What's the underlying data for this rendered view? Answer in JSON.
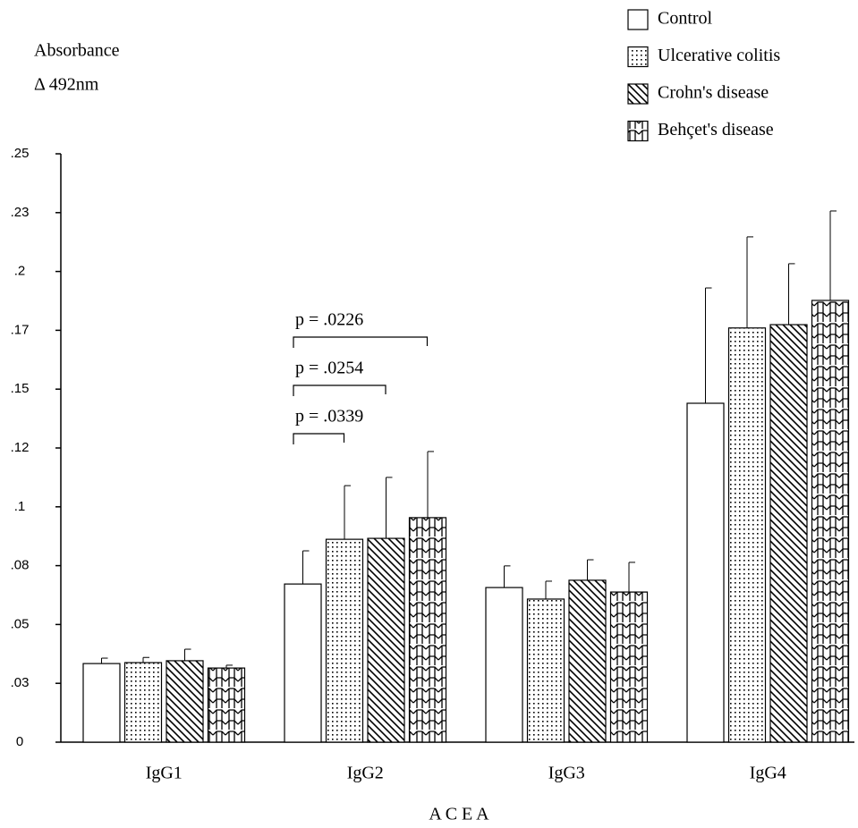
{
  "chart_data": {
    "type": "bar",
    "y_label_lines": [
      "Absorbance",
      "Δ 492nm"
    ],
    "x_label": "A C E A",
    "categories": [
      "IgG1",
      "IgG2",
      "IgG3",
      "IgG4"
    ],
    "series": [
      {
        "name": "Control",
        "color": "#ffffff",
        "pattern": "none",
        "values": [
          0.0334,
          0.0672,
          0.0657,
          0.144
        ],
        "errors": [
          0.0023,
          0.0141,
          0.0092,
          0.049
        ]
      },
      {
        "name": "Ulcerative colitis",
        "color": "#ffffff",
        "pattern": "dots",
        "values": [
          0.0338,
          0.0862,
          0.0608,
          0.176
        ],
        "errors": [
          0.0022,
          0.0228,
          0.0076,
          0.0387
        ]
      },
      {
        "name": "Crohn's disease",
        "color": "#ffffff",
        "pattern": "diagonal",
        "values": [
          0.0346,
          0.0866,
          0.0688,
          0.1774
        ],
        "errors": [
          0.0049,
          0.0259,
          0.0087,
          0.0259
        ]
      },
      {
        "name": "Behçet's disease",
        "color": "#ffffff",
        "pattern": "zigzag",
        "values": [
          0.0315,
          0.0954,
          0.0638,
          0.1877
        ],
        "errors": [
          0.0012,
          0.0281,
          0.0126,
          0.038
        ]
      }
    ],
    "annotations": [
      {
        "text": "p = .0339"
      },
      {
        "text": "p = .0254"
      },
      {
        "text": "p = .0226"
      }
    ],
    "ylim": [
      0,
      0.25
    ],
    "yticks": [
      0,
      {
        "value": 0.025,
        "label": ".03"
      },
      {
        "value": 0.05,
        "label": ".05"
      },
      {
        "value": 0.075,
        "label": ".08"
      },
      {
        "value": 0.1,
        "label": ".1"
      },
      {
        "value": 0.125,
        "label": ".12"
      },
      {
        "value": 0.15,
        "label": ".15"
      },
      {
        "value": 0.175,
        "label": ".17"
      },
      {
        "value": 0.2,
        "label": ".2"
      },
      {
        "value": 0.225,
        "label": ".23"
      },
      {
        "value": 0.25,
        "label": ".25"
      }
    ],
    "grid": false,
    "legend": "top-right"
  }
}
